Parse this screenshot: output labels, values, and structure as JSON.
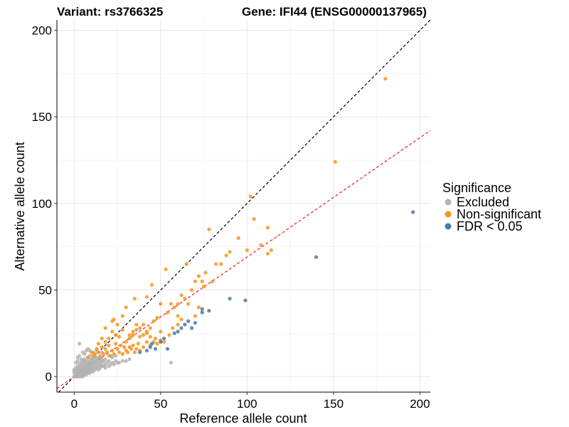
{
  "chart_data": {
    "type": "scatter",
    "title_left": "Variant: rs3766325",
    "title_right": "Gene: IFI44 (ENSG00000137965)",
    "xlabel": "Reference allele count",
    "ylabel": "Alternative allele count",
    "xlim": [
      -10,
      206
    ],
    "ylim": [
      -9,
      206
    ],
    "xticks": [
      0,
      50,
      100,
      150,
      200
    ],
    "yticks": [
      0,
      50,
      100,
      150,
      200
    ],
    "grid": true,
    "legend": {
      "title": "Significance",
      "position": "right",
      "entries": [
        {
          "label": "Excluded",
          "color": "#b3b3b3"
        },
        {
          "label": "Non-significant",
          "color": "#f7941d"
        },
        {
          "label": "FDR < 0.05",
          "color": "#4a78a8"
        }
      ]
    },
    "reference_lines": [
      {
        "name": "identity",
        "slope": 1.0,
        "intercept": 0,
        "color": "#000000",
        "dash": true
      },
      {
        "name": "fitted",
        "slope": 0.69,
        "intercept": 0,
        "color": "#e8201c",
        "dash": true
      }
    ],
    "series": [
      {
        "name": "Excluded",
        "color": "#b3b3b3",
        "points": [
          [
            0,
            0
          ],
          [
            1,
            0
          ],
          [
            1,
            1
          ],
          [
            2,
            0
          ],
          [
            0,
            2
          ],
          [
            1,
            2
          ],
          [
            2,
            1
          ],
          [
            2,
            2
          ],
          [
            3,
            0
          ],
          [
            3,
            1
          ],
          [
            3,
            2
          ],
          [
            3,
            3
          ],
          [
            0,
            3
          ],
          [
            1,
            3
          ],
          [
            2,
            3
          ],
          [
            4,
            0
          ],
          [
            4,
            1
          ],
          [
            4,
            2
          ],
          [
            4,
            3
          ],
          [
            4,
            4
          ],
          [
            0,
            4
          ],
          [
            2,
            4
          ],
          [
            3,
            4
          ],
          [
            5,
            0
          ],
          [
            5,
            1
          ],
          [
            5,
            2
          ],
          [
            5,
            3
          ],
          [
            5,
            4
          ],
          [
            5,
            5
          ],
          [
            1,
            5
          ],
          [
            3,
            5
          ],
          [
            6,
            1
          ],
          [
            6,
            2
          ],
          [
            6,
            3
          ],
          [
            6,
            4
          ],
          [
            6,
            5
          ],
          [
            6,
            6
          ],
          [
            2,
            6
          ],
          [
            4,
            6
          ],
          [
            7,
            1
          ],
          [
            7,
            2
          ],
          [
            7,
            3
          ],
          [
            7,
            4
          ],
          [
            7,
            5
          ],
          [
            7,
            6
          ],
          [
            7,
            7
          ],
          [
            3,
            7
          ],
          [
            5,
            7
          ],
          [
            8,
            2
          ],
          [
            8,
            3
          ],
          [
            8,
            4
          ],
          [
            8,
            5
          ],
          [
            8,
            6
          ],
          [
            8,
            7
          ],
          [
            8,
            8
          ],
          [
            4,
            8
          ],
          [
            6,
            8
          ],
          [
            9,
            2
          ],
          [
            9,
            3
          ],
          [
            9,
            4
          ],
          [
            9,
            6
          ],
          [
            9,
            8
          ],
          [
            9,
            9
          ],
          [
            5,
            9
          ],
          [
            7,
            9
          ],
          [
            10,
            3
          ],
          [
            10,
            4
          ],
          [
            10,
            5
          ],
          [
            10,
            6
          ],
          [
            10,
            7
          ],
          [
            10,
            8
          ],
          [
            10,
            10
          ],
          [
            6,
            10
          ],
          [
            11,
            3
          ],
          [
            11,
            5
          ],
          [
            11,
            7
          ],
          [
            11,
            9
          ],
          [
            11,
            11
          ],
          [
            8,
            11
          ],
          [
            12,
            4
          ],
          [
            12,
            6
          ],
          [
            12,
            8
          ],
          [
            12,
            10
          ],
          [
            12,
            12
          ],
          [
            9,
            12
          ],
          [
            13,
            5
          ],
          [
            13,
            7
          ],
          [
            13,
            9
          ],
          [
            13,
            11
          ],
          [
            14,
            4
          ],
          [
            14,
            6
          ],
          [
            14,
            8
          ],
          [
            14,
            10
          ],
          [
            15,
            5
          ],
          [
            15,
            7
          ],
          [
            15,
            9
          ],
          [
            16,
            6
          ],
          [
            16,
            8
          ],
          [
            16,
            10
          ],
          [
            17,
            6
          ],
          [
            17,
            9
          ],
          [
            18,
            5
          ],
          [
            18,
            7
          ],
          [
            18,
            10
          ],
          [
            19,
            8
          ],
          [
            20,
            6
          ],
          [
            20,
            9
          ],
          [
            21,
            7
          ],
          [
            22,
            8
          ],
          [
            23,
            7
          ],
          [
            24,
            9
          ],
          [
            25,
            8
          ],
          [
            26,
            8
          ],
          [
            28,
            9
          ],
          [
            30,
            9
          ],
          [
            32,
            10
          ],
          [
            2,
            11
          ],
          [
            3,
            12
          ],
          [
            5,
            14
          ],
          [
            7,
            15
          ],
          [
            4,
            10
          ],
          [
            6,
            13
          ],
          [
            8,
            16
          ],
          [
            1,
            8
          ],
          [
            2,
            9
          ],
          [
            3,
            19
          ],
          [
            9,
            15
          ],
          [
            11,
            14
          ],
          [
            13,
            15
          ],
          [
            15,
            12
          ],
          [
            16,
            14
          ],
          [
            20,
            12
          ],
          [
            22,
            11
          ],
          [
            24,
            12
          ],
          [
            56,
            8
          ]
        ]
      },
      {
        "name": "Non-significant",
        "color": "#f7941d",
        "points": [
          [
            12,
            13
          ],
          [
            13,
            16
          ],
          [
            14,
            14
          ],
          [
            15,
            11
          ],
          [
            16,
            17
          ],
          [
            17,
            13
          ],
          [
            18,
            16
          ],
          [
            19,
            14
          ],
          [
            20,
            18
          ],
          [
            21,
            12
          ],
          [
            22,
            15
          ],
          [
            23,
            13
          ],
          [
            24,
            19
          ],
          [
            25,
            16
          ],
          [
            26,
            14
          ],
          [
            27,
            18
          ],
          [
            28,
            13
          ],
          [
            29,
            17
          ],
          [
            30,
            15
          ],
          [
            31,
            14
          ],
          [
            32,
            17
          ],
          [
            33,
            16
          ],
          [
            34,
            18
          ],
          [
            35,
            14
          ],
          [
            36,
            16
          ],
          [
            37,
            19
          ],
          [
            38,
            15
          ],
          [
            40,
            17
          ],
          [
            42,
            20
          ],
          [
            44,
            18
          ],
          [
            46,
            20
          ],
          [
            48,
            19
          ],
          [
            50,
            21
          ],
          [
            52,
            20
          ],
          [
            14,
            19
          ],
          [
            16,
            22
          ],
          [
            18,
            20
          ],
          [
            20,
            22
          ],
          [
            22,
            26
          ],
          [
            24,
            24
          ],
          [
            26,
            23
          ],
          [
            28,
            27
          ],
          [
            30,
            20
          ],
          [
            32,
            22
          ],
          [
            34,
            24
          ],
          [
            36,
            27
          ],
          [
            38,
            23
          ],
          [
            40,
            30
          ],
          [
            42,
            25
          ],
          [
            44,
            28
          ],
          [
            46,
            32
          ],
          [
            48,
            34
          ],
          [
            50,
            42
          ],
          [
            54,
            37
          ],
          [
            56,
            42
          ],
          [
            58,
            40
          ],
          [
            60,
            35
          ],
          [
            62,
            33
          ],
          [
            64,
            45
          ],
          [
            66,
            42
          ],
          [
            68,
            50
          ],
          [
            70,
            55
          ],
          [
            72,
            58
          ],
          [
            74,
            55
          ],
          [
            76,
            60
          ],
          [
            78,
            85
          ],
          [
            80,
            55
          ],
          [
            82,
            65
          ],
          [
            85,
            65
          ],
          [
            88,
            70
          ],
          [
            90,
            72
          ],
          [
            95,
            80
          ],
          [
            100,
            73
          ],
          [
            102,
            104
          ],
          [
            104,
            91
          ],
          [
            108,
            76
          ],
          [
            112,
            86
          ],
          [
            114,
            73
          ],
          [
            112,
            71
          ],
          [
            75,
            52
          ],
          [
            65,
            65
          ],
          [
            53,
            62
          ],
          [
            45,
            53
          ],
          [
            42,
            46
          ],
          [
            35,
            45
          ],
          [
            30,
            40
          ],
          [
            25,
            30
          ],
          [
            23,
            33
          ],
          [
            18,
            28
          ],
          [
            22,
            32
          ],
          [
            28,
            35
          ],
          [
            60,
            30
          ],
          [
            60,
            42
          ],
          [
            57,
            28
          ],
          [
            55,
            24
          ],
          [
            50,
            26
          ],
          [
            47,
            22
          ],
          [
            44,
            23
          ],
          [
            42,
            26
          ],
          [
            40,
            24
          ],
          [
            38,
            28
          ],
          [
            36,
            30
          ],
          [
            34,
            26
          ],
          [
            32,
            24
          ],
          [
            70,
            35
          ],
          [
            72,
            40
          ],
          [
            62,
            47
          ],
          [
            151,
            124
          ],
          [
            180,
            172
          ],
          [
            8,
            11
          ],
          [
            10,
            14
          ],
          [
            11,
            12
          ]
        ]
      },
      {
        "name": "FDR < 0.05",
        "color": "#4a78a8",
        "points": [
          [
            38,
            14
          ],
          [
            42,
            15
          ],
          [
            44,
            17
          ],
          [
            45,
            19
          ],
          [
            47,
            16
          ],
          [
            50,
            20
          ],
          [
            52,
            22
          ],
          [
            54,
            16
          ],
          [
            58,
            25
          ],
          [
            60,
            26
          ],
          [
            62,
            28
          ],
          [
            64,
            30
          ],
          [
            66,
            32
          ],
          [
            68,
            28
          ],
          [
            70,
            31
          ],
          [
            74,
            37
          ],
          [
            74,
            39
          ],
          [
            78,
            38
          ],
          [
            90,
            45
          ],
          [
            99,
            44
          ],
          [
            140,
            69
          ],
          [
            196,
            95
          ]
        ]
      }
    ]
  }
}
